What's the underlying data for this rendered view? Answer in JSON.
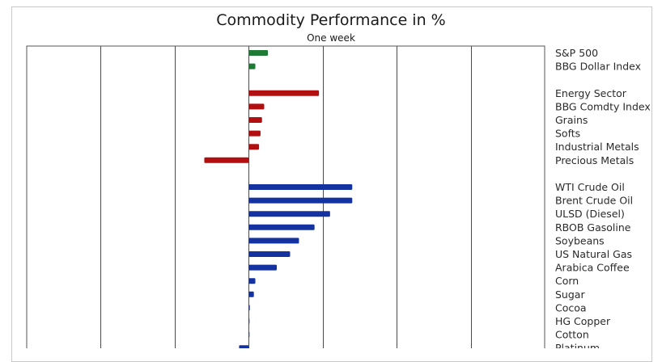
{
  "chart_data": {
    "type": "bar",
    "orientation": "horizontal",
    "title": "Commodity Performance in %",
    "subtitle": "One week",
    "xlim": [
      -30,
      40
    ],
    "grid": true,
    "groups": [
      {
        "color": "#1f7a35",
        "items": [
          {
            "label": "S&P 500",
            "value": 2.6
          },
          {
            "label": "BBG Dollar Index",
            "value": 0.9
          }
        ]
      },
      {
        "color": "#b10f10",
        "items": [
          {
            "label": "Energy Sector",
            "value": 9.5
          },
          {
            "label": "BBG Comdty Index",
            "value": 2.1
          },
          {
            "label": "Grains",
            "value": 1.8
          },
          {
            "label": "Softs",
            "value": 1.6
          },
          {
            "label": "Industrial Metals",
            "value": 1.4
          },
          {
            "label": "Precious Metals",
            "value": -6.0
          }
        ]
      },
      {
        "color": "#1533a0",
        "items": [
          {
            "label": "WTI Crude Oil",
            "value": 14.0
          },
          {
            "label": "Brent Crude Oil",
            "value": 14.0
          },
          {
            "label": "ULSD (Diesel)",
            "value": 11.0
          },
          {
            "label": "RBOB Gasoline",
            "value": 8.9
          },
          {
            "label": "Soybeans",
            "value": 6.8
          },
          {
            "label": "US Natural Gas",
            "value": 5.6
          },
          {
            "label": "Arabica Coffee",
            "value": 3.8
          },
          {
            "label": "Corn",
            "value": 0.9
          },
          {
            "label": "Sugar",
            "value": 0.7
          },
          {
            "label": "Cocoa",
            "value": 0.15
          },
          {
            "label": "HG Copper",
            "value": 0.08
          },
          {
            "label": "Cotton",
            "value": 0.06
          },
          {
            "label": "Platinum",
            "value": -1.3
          }
        ]
      }
    ]
  }
}
